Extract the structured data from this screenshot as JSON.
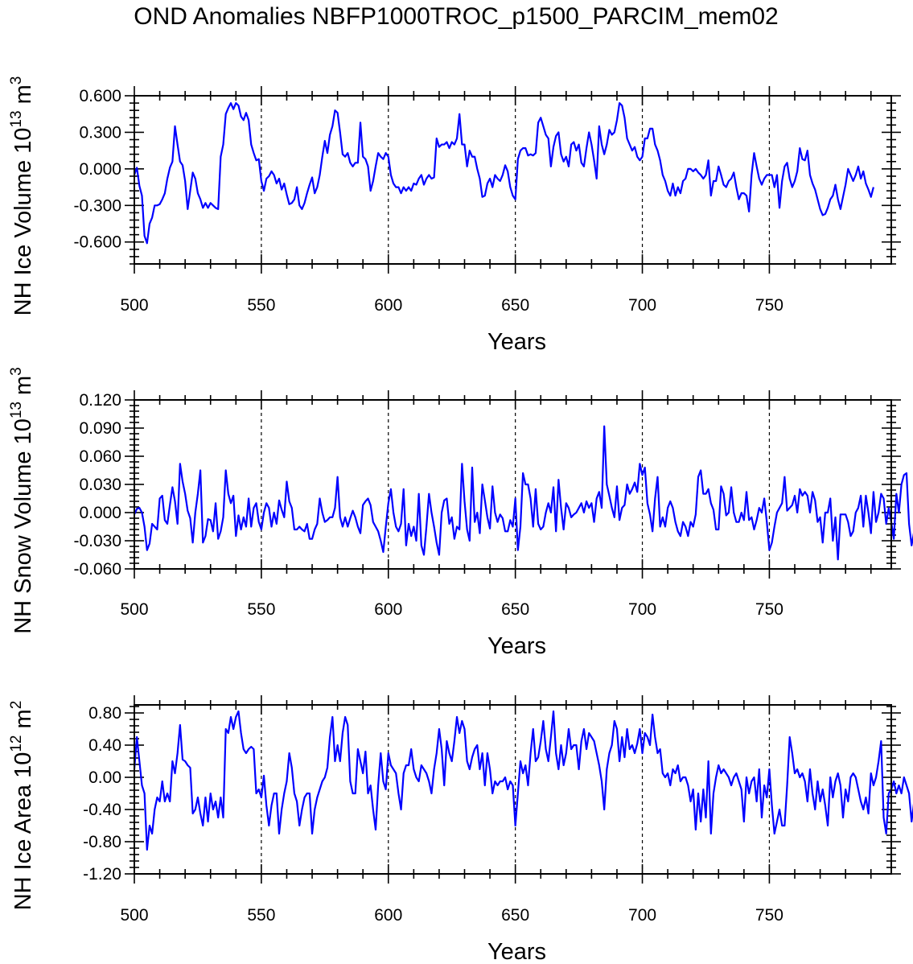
{
  "title": "OND Anomalies NBFP1000TROC_p1500_PARCIM_mem02",
  "chart_data": [
    {
      "type": "line",
      "xlabel": "Years",
      "ylabel": "NH Ice Volume 10",
      "ylabel_exp": "13",
      "ylabel_unit": " m",
      "ylabel_unit_exp": "3",
      "xlim": [
        500,
        798
      ],
      "ylim": [
        -0.78,
        0.6
      ],
      "xticks": [
        500,
        550,
        600,
        650,
        700,
        750
      ],
      "xtick_labels": [
        "500",
        "550",
        "600",
        "650",
        "700",
        "750"
      ],
      "yticks": [
        0.6,
        0.3,
        0.0,
        -0.3,
        -0.6
      ],
      "ytick_labels": [
        "0.600",
        "0.300",
        "0.000",
        "-0.300",
        "-0.600"
      ],
      "vlines": [
        550,
        600,
        650,
        700,
        750
      ],
      "x_start": 500,
      "values": [
        -0.05,
        0.01,
        -0.14,
        -0.22,
        -0.55,
        -0.61,
        -0.45,
        -0.4,
        -0.3,
        -0.3,
        -0.29,
        -0.25,
        -0.2,
        -0.08,
        0.01,
        0.06,
        0.35,
        0.2,
        0.06,
        0.03,
        -0.1,
        -0.33,
        -0.18,
        -0.03,
        -0.08,
        -0.2,
        -0.25,
        -0.32,
        -0.28,
        -0.32,
        -0.28,
        -0.3,
        -0.32,
        -0.33,
        0.1,
        0.2,
        0.45,
        0.5,
        0.54,
        0.49,
        0.54,
        0.52,
        0.43,
        0.4,
        0.46,
        0.4,
        0.2,
        0.13,
        0.07,
        0.08,
        -0.1,
        -0.18,
        -0.08,
        -0.06,
        -0.02,
        -0.05,
        -0.12,
        -0.08,
        -0.17,
        -0.12,
        -0.21,
        -0.29,
        -0.28,
        -0.25,
        -0.15,
        -0.3,
        -0.33,
        -0.28,
        -0.2,
        -0.13,
        -0.07,
        -0.2,
        -0.15,
        -0.05,
        0.1,
        0.23,
        0.13,
        0.28,
        0.35,
        0.48,
        0.46,
        0.3,
        0.12,
        0.1,
        0.13,
        0.05,
        0.02,
        0.05,
        0.05,
        0.38,
        0.1,
        0.08,
        0.02,
        -0.18,
        -0.1,
        0.02,
        0.13,
        0.1,
        0.08,
        0.13,
        0.1,
        -0.05,
        -0.12,
        -0.15,
        -0.15,
        -0.2,
        -0.15,
        -0.18,
        -0.15,
        -0.18,
        -0.12,
        -0.13,
        -0.08,
        -0.05,
        -0.13,
        -0.08,
        -0.05,
        -0.08,
        -0.07,
        0.25,
        0.18,
        0.2,
        0.2,
        0.22,
        0.17,
        0.22,
        0.2,
        0.25,
        0.45,
        0.2,
        0.2,
        0.02,
        0.15,
        0.1,
        0.1,
        0.0,
        -0.08,
        -0.23,
        -0.22,
        -0.12,
        -0.08,
        -0.15,
        -0.05,
        -0.08,
        -0.1,
        -0.05,
        0.03,
        -0.02,
        -0.15,
        -0.22,
        -0.25,
        0.08,
        0.15,
        0.17,
        0.17,
        0.11,
        0.12,
        0.11,
        0.13,
        0.38,
        0.42,
        0.35,
        0.28,
        0.25,
        0.02,
        0.18,
        0.27,
        0.3,
        0.12,
        0.06,
        0.1,
        0.02,
        0.2,
        0.22,
        0.15,
        0.2,
        0.05,
        0.02,
        0.17,
        0.3,
        0.2,
        0.07,
        -0.08,
        0.35,
        0.2,
        0.12,
        0.2,
        0.32,
        0.28,
        0.3,
        0.4,
        0.54,
        0.52,
        0.42,
        0.25,
        0.2,
        0.15,
        0.18,
        0.1,
        0.07,
        0.1,
        0.25,
        0.25,
        0.33,
        0.33,
        0.2,
        0.15,
        0.07,
        -0.05,
        -0.1,
        -0.18,
        -0.22,
        -0.12,
        -0.22,
        -0.15,
        -0.2,
        -0.1,
        -0.08,
        0.0,
        0.0,
        -0.02,
        0.0,
        -0.03,
        -0.05,
        -0.08,
        -0.05,
        0.07,
        -0.22,
        -0.1,
        -0.1,
        0.02,
        -0.05,
        -0.13,
        -0.15,
        -0.1,
        -0.08,
        -0.03,
        -0.15,
        -0.25,
        -0.2,
        -0.2,
        -0.22,
        -0.35,
        -0.05,
        0.13,
        0.02,
        -0.08,
        -0.13,
        -0.08,
        -0.05,
        -0.05,
        -0.05,
        -0.15,
        -0.05,
        -0.32,
        -0.1,
        0.02,
        0.05,
        -0.08,
        -0.15,
        -0.1,
        -0.02,
        0.17,
        0.08,
        0.07,
        0.15,
        -0.05,
        -0.12,
        -0.17,
        -0.25,
        -0.33,
        -0.38,
        -0.37,
        -0.32,
        -0.25,
        -0.22,
        -0.13,
        -0.25,
        -0.33,
        -0.23,
        -0.13,
        0.0,
        -0.05,
        -0.1,
        -0.05,
        0.02,
        -0.08,
        -0.02,
        -0.12,
        -0.17,
        -0.23,
        -0.15
      ]
    },
    {
      "type": "line",
      "xlabel": "Years",
      "ylabel": "NH Snow Volume 10",
      "ylabel_exp": "13",
      "ylabel_unit": " m",
      "ylabel_unit_exp": "3",
      "xlim": [
        500,
        798
      ],
      "ylim": [
        -0.06,
        0.12
      ],
      "xticks": [
        500,
        550,
        600,
        650,
        700,
        750
      ],
      "xtick_labels": [
        "500",
        "550",
        "600",
        "650",
        "700",
        "750"
      ],
      "yticks": [
        0.12,
        0.09,
        0.06,
        0.03,
        0.0,
        -0.03,
        -0.06
      ],
      "ytick_labels": [
        "0.120",
        "0.090",
        "0.060",
        "0.030",
        "0.000",
        "-0.030",
        "-0.060"
      ],
      "vlines": [
        550,
        600,
        650,
        700,
        750
      ],
      "x_start": 500,
      "values": [
        -0.002,
        0.004,
        0.005,
        0.0,
        -0.015,
        -0.04,
        -0.033,
        -0.012,
        -0.015,
        -0.018,
        0.015,
        0.018,
        -0.008,
        -0.012,
        0.008,
        0.027,
        0.012,
        -0.012,
        0.052,
        0.033,
        0.02,
        0.002,
        -0.006,
        -0.032,
        0.0,
        0.02,
        0.045,
        -0.032,
        -0.025,
        -0.007,
        -0.008,
        -0.02,
        0.01,
        -0.028,
        -0.02,
        -0.005,
        0.045,
        0.02,
        0.01,
        0.018,
        -0.025,
        -0.003,
        -0.018,
        -0.005,
        -0.015,
        0.015,
        -0.015,
        0.005,
        0.01,
        -0.01,
        -0.018,
        0.0,
        0.01,
        0.005,
        -0.015,
        0.0,
        -0.012,
        0.013,
        0.003,
        -0.005,
        0.033,
        0.012,
        0.005,
        -0.018,
        -0.018,
        -0.015,
        -0.018,
        -0.02,
        -0.012,
        -0.028,
        -0.028,
        -0.018,
        -0.012,
        0.015,
        0.0,
        -0.01,
        -0.008,
        -0.005,
        -0.005,
        0.005,
        0.038,
        -0.005,
        -0.015,
        -0.005,
        -0.015,
        -0.006,
        0.002,
        -0.005,
        -0.015,
        -0.022,
        0.008,
        0.012,
        0.015,
        0.008,
        -0.01,
        -0.015,
        -0.02,
        -0.03,
        -0.042,
        -0.015,
        0.01,
        0.025,
        0.0,
        -0.015,
        -0.02,
        -0.012,
        0.025,
        -0.035,
        -0.012,
        -0.025,
        -0.015,
        -0.03,
        0.02,
        -0.035,
        -0.045,
        -0.015,
        0.02,
        0.0,
        -0.015,
        -0.032,
        -0.045,
        0.0,
        0.013,
        0.015,
        -0.012,
        -0.005,
        -0.028,
        -0.015,
        -0.018,
        0.052,
        0.012,
        -0.018,
        -0.03,
        0.048,
        -0.01,
        0.0,
        -0.022,
        0.03,
        0.013,
        -0.005,
        -0.017,
        0.028,
        0.0,
        -0.01,
        -0.002,
        -0.006,
        -0.02,
        -0.02,
        -0.008,
        -0.015,
        0.015,
        -0.04,
        -0.015,
        0.042,
        0.03,
        0.03,
        0.015,
        -0.015,
        0.025,
        -0.012,
        -0.018,
        -0.015,
        0.0,
        0.01,
        0.0,
        0.027,
        -0.02,
        0.035,
        0.005,
        -0.018,
        0.01,
        0.005,
        -0.005,
        -0.002,
        0.0,
        0.005,
        0.01,
        0.0,
        0.012,
        0.005,
        0.01,
        -0.01,
        0.015,
        0.022,
        0.005,
        0.092,
        0.03,
        0.018,
        0.005,
        -0.005,
        0.028,
        -0.008,
        0.005,
        0.008,
        0.03,
        0.02,
        0.025,
        0.032,
        0.022,
        0.052,
        0.04,
        0.048,
        0.01,
        -0.002,
        -0.02,
        0.015,
        0.038,
        -0.015,
        -0.005,
        -0.015,
        0.005,
        0.012,
        0.005,
        -0.01,
        -0.02,
        -0.025,
        -0.01,
        -0.015,
        -0.025,
        -0.01,
        -0.015,
        -0.002,
        0.038,
        0.045,
        0.02,
        0.02,
        0.025,
        0.01,
        0.003,
        -0.018,
        -0.018,
        0.028,
        0.02,
        -0.003,
        0.0,
        0.027,
        0.0,
        -0.01,
        -0.01,
        0.0,
        -0.008,
        0.022,
        -0.008,
        -0.005,
        -0.018,
        -0.008,
        0.005,
        0.0,
        0.015,
        -0.01,
        -0.04,
        -0.032,
        -0.015,
        0.0,
        0.005,
        0.01,
        0.038,
        0.002,
        0.005,
        0.008,
        0.018,
        0.0,
        0.025,
        0.018,
        0.022,
        0.018,
        0.0,
        0.022,
        0.013,
        -0.01,
        -0.005,
        -0.032,
        0.0,
        0.0,
        0.015,
        -0.03,
        -0.005,
        -0.05,
        -0.002,
        -0.002,
        -0.002,
        -0.01,
        -0.025,
        -0.02,
        0.0,
        0.005,
        0.018,
        -0.015,
        0.018,
        0.0,
        -0.022,
        0.022,
        -0.01,
        0.0,
        0.02,
        0.015,
        -0.012,
        0.005,
        -0.01,
        -0.028,
        0.02,
        0.0,
        0.03,
        0.04,
        0.042,
        -0.012,
        -0.035,
        -0.02
      ]
    },
    {
      "type": "line",
      "xlabel": "Years",
      "ylabel": "NH Ice Area 10",
      "ylabel_exp": "12",
      "ylabel_unit": " m",
      "ylabel_unit_exp": "2",
      "xlim": [
        500,
        798
      ],
      "ylim": [
        -1.2,
        0.9
      ],
      "xticks": [
        500,
        550,
        600,
        650,
        700,
        750
      ],
      "xtick_labels": [
        "500",
        "550",
        "600",
        "650",
        "700",
        "750"
      ],
      "yticks": [
        0.8,
        0.4,
        0.0,
        -0.4,
        -0.8,
        -1.2
      ],
      "ytick_labels": [
        "0.80",
        "0.40",
        "0.00",
        "-0.40",
        "-0.80",
        "-1.20"
      ],
      "vlines": [
        550,
        600,
        650,
        700,
        750
      ],
      "x_start": 500,
      "values": [
        0.1,
        0.5,
        0.2,
        -0.1,
        -0.2,
        -0.9,
        -0.6,
        -0.7,
        -0.4,
        -0.25,
        -0.3,
        -0.05,
        -0.3,
        -0.2,
        -0.3,
        0.2,
        0.05,
        0.3,
        0.65,
        0.22,
        0.2,
        0.15,
        0.12,
        -0.45,
        -0.4,
        -0.25,
        -0.45,
        -0.6,
        -0.25,
        -0.55,
        -0.2,
        -0.4,
        -0.3,
        -0.5,
        -0.25,
        -0.5,
        0.6,
        0.55,
        0.75,
        0.6,
        0.75,
        0.82,
        0.55,
        0.35,
        0.3,
        0.35,
        0.38,
        0.35,
        -0.2,
        -0.15,
        -0.25,
        0.02,
        -0.35,
        -0.6,
        -0.35,
        -0.2,
        -0.2,
        -0.7,
        -0.4,
        -0.2,
        -0.05,
        0.3,
        0.12,
        -0.2,
        -0.3,
        -0.6,
        -0.4,
        -0.25,
        -0.2,
        -0.2,
        -0.7,
        -0.4,
        -0.25,
        -0.15,
        -0.05,
        0.0,
        0.12,
        0.5,
        0.75,
        0.2,
        0.4,
        0.2,
        0.55,
        0.75,
        0.65,
        -0.05,
        -0.2,
        -0.2,
        0.35,
        0.2,
        0.05,
        0.32,
        -0.2,
        -0.1,
        -0.4,
        -0.65,
        -0.1,
        0.3,
        -0.05,
        -0.15,
        0.3,
        0.15,
        0.1,
        0.05,
        -0.2,
        -0.4,
        0.05,
        0.15,
        0.15,
        0.35,
        0.1,
        0.0,
        -0.05,
        0.15,
        0.1,
        0.05,
        -0.05,
        -0.2,
        0.1,
        0.3,
        0.6,
        0.35,
        -0.1,
        0.45,
        0.3,
        0.2,
        0.45,
        0.75,
        0.55,
        0.7,
        0.6,
        0.2,
        0.1,
        0.25,
        0.35,
        0.4,
        0.1,
        0.3,
        -0.1,
        0.3,
        0.1,
        -0.2,
        -0.05,
        -0.1,
        -0.05,
        -0.05,
        0.0,
        -0.15,
        -0.05,
        -0.1,
        -0.6,
        -0.2,
        0.2,
        0.05,
        0.15,
        -0.1,
        0.3,
        0.6,
        0.2,
        0.25,
        0.45,
        0.7,
        0.35,
        0.2,
        0.5,
        0.82,
        0.3,
        0.1,
        0.4,
        0.15,
        0.3,
        0.6,
        0.35,
        0.4,
        0.4,
        0.1,
        0.45,
        0.6,
        0.35,
        0.55,
        0.5,
        0.45,
        0.3,
        0.15,
        -0.05,
        -0.4,
        0.1,
        0.3,
        0.4,
        0.7,
        0.6,
        0.2,
        0.5,
        0.25,
        0.6,
        0.35,
        0.4,
        0.3,
        0.42,
        0.6,
        0.3,
        0.55,
        0.5,
        0.4,
        0.78,
        0.5,
        0.3,
        0.35,
        0.05,
        0.0,
        0.05,
        -0.1,
        0.1,
        0.05,
        0.15,
        -0.05,
        0.0,
        0.0,
        -0.1,
        -0.3,
        -0.15,
        -0.65,
        -0.2,
        -0.55,
        -0.15,
        -0.5,
        0.2,
        -0.7,
        -0.2,
        0.0,
        0.15,
        0.05,
        0.1,
        0.05,
        0.0,
        -0.1,
        0.0,
        0.05,
        -0.05,
        -0.15,
        -0.55,
        0.0,
        -0.2,
        -0.05,
        0.0,
        -0.3,
        0.1,
        -0.5,
        -0.1,
        -0.25,
        0.1,
        -0.35,
        -0.7,
        -0.55,
        -0.4,
        -0.6,
        -0.6,
        -0.1,
        0.5,
        0.3,
        0.05,
        0.1,
        0.0,
        0.05,
        -0.05,
        -0.3,
        0.1,
        -0.2,
        -0.4,
        -0.05,
        -0.3,
        -0.15,
        -0.35,
        -0.6,
        0.0,
        -0.25,
        -0.05,
        0.05,
        -0.1,
        -0.5,
        -0.15,
        -0.3,
        0.0,
        0.05,
        0.0,
        -0.15,
        -0.3,
        -0.4,
        -0.25,
        -0.45,
        0.05,
        -0.1,
        0.0,
        0.2,
        0.45,
        -0.5,
        -0.7,
        -0.2,
        -0.15,
        -0.05,
        -0.2,
        -0.1,
        -0.2,
        0.0,
        -0.1,
        -0.2,
        -0.55,
        -0.3,
        -0.3,
        0.05
      ]
    }
  ]
}
